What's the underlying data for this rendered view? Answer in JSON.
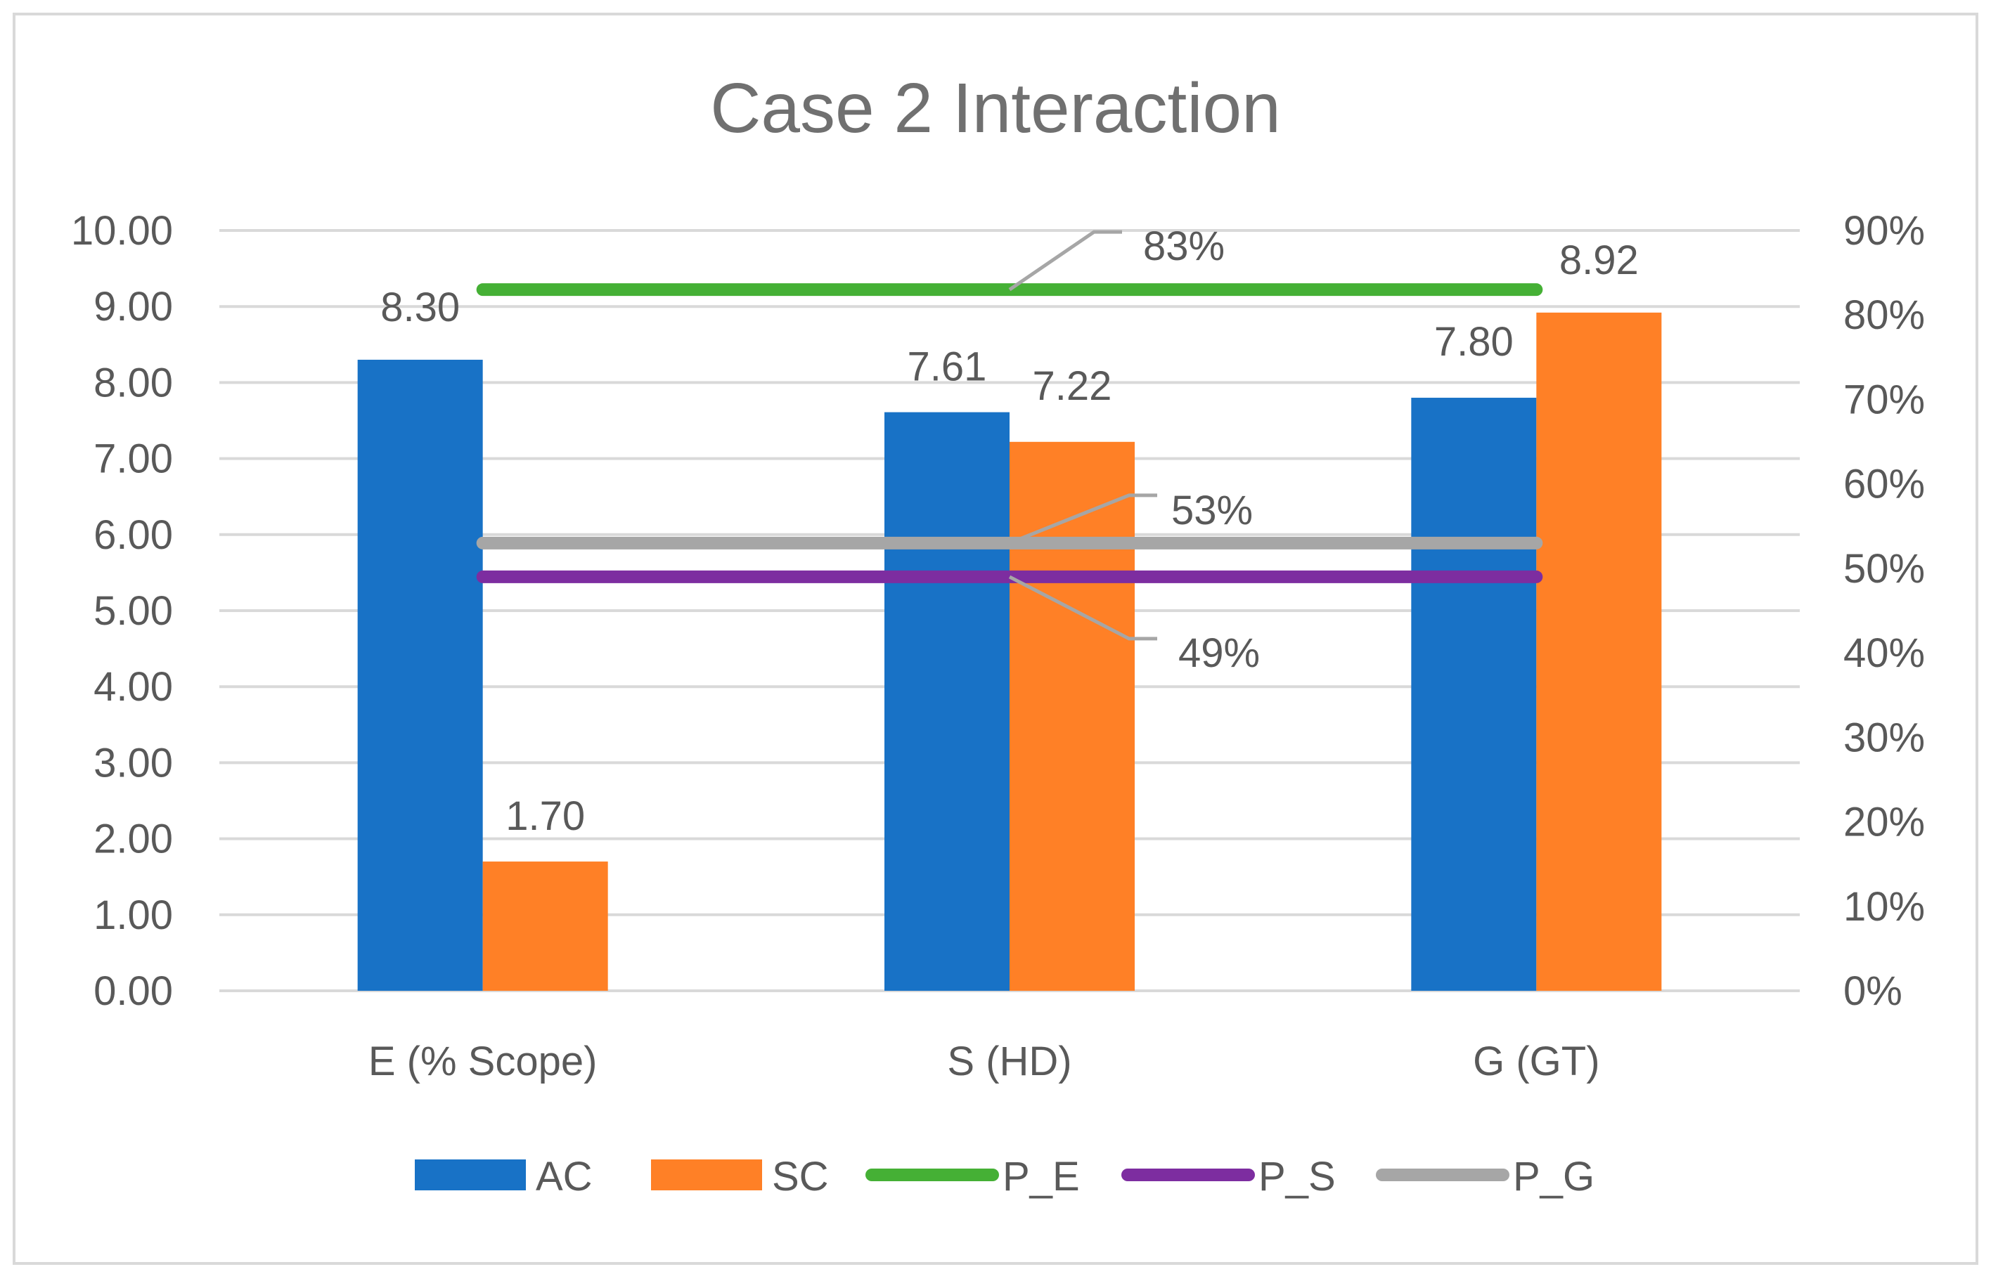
{
  "chart_data": {
    "type": "bar",
    "title": "Case 2 Interaction",
    "categories": [
      "E (% Scope)",
      "S (HD)",
      "G (GT)"
    ],
    "series": [
      {
        "name": "AC",
        "kind": "bar",
        "axis": "primary",
        "color": "#1872C6",
        "values": [
          8.3,
          7.61,
          7.8
        ]
      },
      {
        "name": "SC",
        "kind": "bar",
        "axis": "primary",
        "color": "#FF8026",
        "values": [
          1.7,
          7.22,
          8.92
        ]
      },
      {
        "name": "P_E",
        "kind": "line",
        "axis": "secondary",
        "color": "#45B035",
        "value": 0.83
      },
      {
        "name": "P_S",
        "kind": "line",
        "axis": "secondary",
        "color": "#7D2DA0",
        "value": 0.49
      },
      {
        "name": "P_G",
        "kind": "line",
        "axis": "secondary",
        "color": "#A6A6A6",
        "value": 0.53
      }
    ],
    "primary_axis": {
      "ylim": [
        0,
        10
      ],
      "ticks": [
        "0.00",
        "1.00",
        "2.00",
        "3.00",
        "4.00",
        "5.00",
        "6.00",
        "7.00",
        "8.00",
        "9.00",
        "10.00"
      ]
    },
    "secondary_axis": {
      "ylim": [
        0,
        0.9
      ],
      "ticks": [
        "0%",
        "10%",
        "20%",
        "30%",
        "40%",
        "50%",
        "60%",
        "70%",
        "80%",
        "90%"
      ]
    },
    "bar_labels": {
      "AC": [
        "8.30",
        "7.61",
        "7.80"
      ],
      "SC": [
        "1.70",
        "7.22",
        "8.92"
      ]
    },
    "line_labels": {
      "P_E": "83%",
      "P_S": "49%",
      "P_G": "53%"
    },
    "legend": [
      "AC",
      "SC",
      "P_E",
      "P_S",
      "P_G"
    ],
    "legend_position": "bottom",
    "grid": true,
    "colors": {
      "text": "#595959",
      "title": "#707070",
      "grid": "#D9D9D9",
      "border": "#D9D9D9",
      "leader": "#A6A6A6"
    }
  }
}
